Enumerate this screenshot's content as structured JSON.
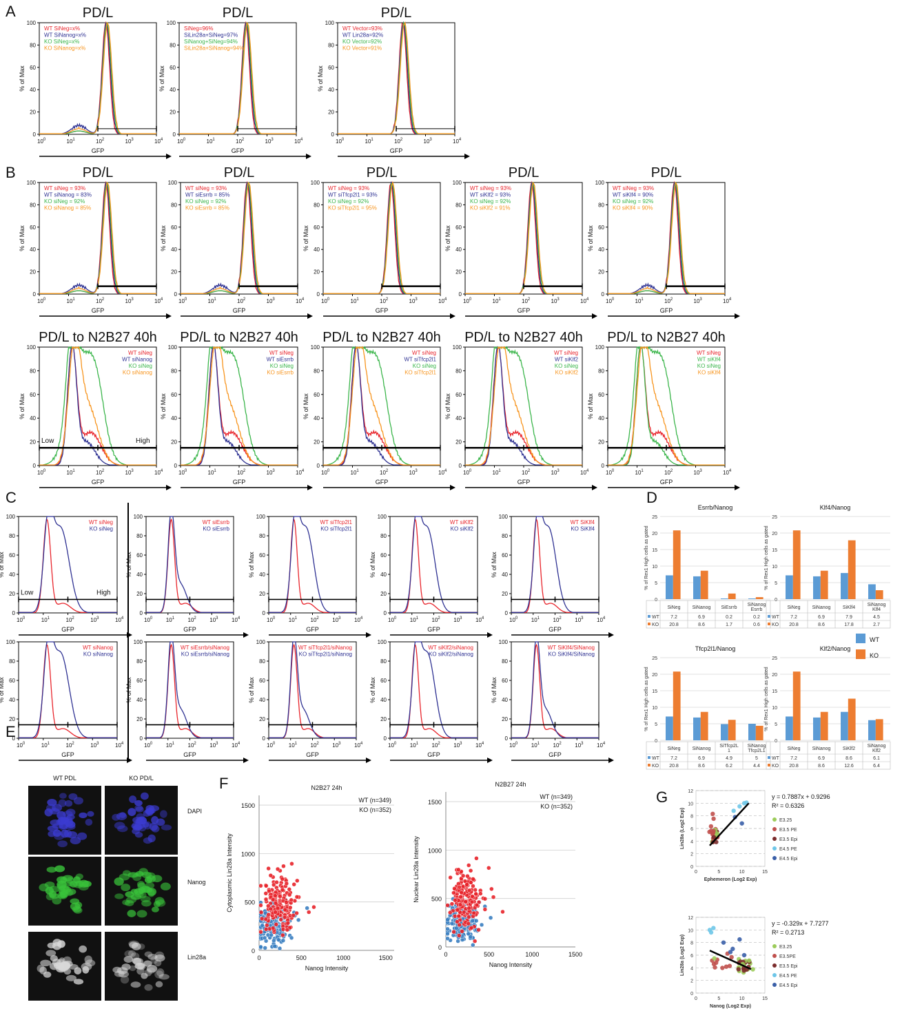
{
  "figure": {
    "panel_letters": [
      "A",
      "B",
      "C",
      "D",
      "E",
      "F",
      "G"
    ],
    "gfp_label": "GFP",
    "pct_max_label": "% of Max",
    "low_label": "Low",
    "high_label": "High",
    "y_ticks": [
      "0",
      "20",
      "40",
      "60",
      "80",
      "100"
    ]
  },
  "colors": {
    "red": "#e8232a",
    "blue": "#2e3192",
    "green": "#3ab54a",
    "orange": "#f7941d",
    "wt_bar": "#5b9bd5",
    "ko_bar": "#ed7d31",
    "wt_dot": "#e8232a",
    "ko_dot": "#3a7fc1"
  },
  "chart_data": [
    {
      "id": "A1",
      "type": "line",
      "title": "PD/L",
      "xlabel": "GFP",
      "ylabel": "% of Max",
      "x_scale": "log",
      "xlim": [
        1,
        10000
      ],
      "ylim": [
        0,
        100
      ],
      "legend": [
        "WT SiNeg=x%",
        "WT SiNanog=x%",
        "KO SiNeg=x%",
        "KO SiNanog=x%"
      ],
      "legend_colors": [
        "red",
        "blue",
        "green",
        "orange"
      ],
      "peak": 200,
      "shoulder": true
    },
    {
      "id": "A2",
      "type": "line",
      "title": "PD/L",
      "xlabel": "GFP",
      "ylabel": "% of Max",
      "x_scale": "log",
      "xlim": [
        1,
        10000
      ],
      "ylim": [
        0,
        100
      ],
      "legend": [
        "SiNeg=96%",
        "SiLin28a+SiNeg=97%",
        "SiNanog+SiNeg=94%",
        "SiLin28a+SiNanog=94%"
      ],
      "legend_colors": [
        "red",
        "blue",
        "green",
        "orange"
      ],
      "peak": 200,
      "shoulder": false
    },
    {
      "id": "A3",
      "type": "line",
      "title": "PD/L",
      "xlabel": "GFP",
      "ylabel": "% of Max",
      "x_scale": "log",
      "xlim": [
        1,
        10000
      ],
      "ylim": [
        0,
        100
      ],
      "legend": [
        "WT Vector=93%",
        "WT Lin28a=92%",
        "KO Vector=92%",
        "KO Vector=91%"
      ],
      "legend_colors": [
        "red",
        "blue",
        "green",
        "orange"
      ],
      "peak": 180,
      "shoulder": false
    },
    {
      "id": "B1",
      "type": "line",
      "title": "PD/L",
      "xlabel": "GFP",
      "ylabel": "% of Max",
      "x_scale": "log",
      "xlim": [
        1,
        10000
      ],
      "ylim": [
        0,
        100
      ],
      "legend": [
        "WT siNeg = 93%",
        "WT siNanog = 83%",
        "KO siNeg = 92%",
        "KO siNanog = 85%"
      ],
      "legend_colors": [
        "red",
        "blue",
        "green",
        "orange"
      ],
      "peak": 200,
      "shoulder": true
    },
    {
      "id": "B2",
      "type": "line",
      "title": "PD/L",
      "xlabel": "GFP",
      "ylabel": "% of Max",
      "x_scale": "log",
      "xlim": [
        1,
        10000
      ],
      "ylim": [
        0,
        100
      ],
      "legend": [
        "WT siNeg = 93%",
        "WT siEsrrb = 85%",
        "KO siNeg = 92%",
        "KO siEsrrb = 85%"
      ],
      "legend_colors": [
        "red",
        "blue",
        "green",
        "orange"
      ],
      "peak": 200,
      "shoulder": true
    },
    {
      "id": "B3",
      "type": "line",
      "title": "PD/L",
      "xlabel": "GFP",
      "ylabel": "% of Max",
      "x_scale": "log",
      "xlim": [
        1,
        10000
      ],
      "ylim": [
        0,
        100
      ],
      "legend": [
        "WT siNeg = 93%",
        "WT siTfcp2l1 = 93%",
        "KO siNeg = 92%",
        "KO siTfcp2l1 = 95%"
      ],
      "legend_colors": [
        "red",
        "blue",
        "green",
        "orange"
      ],
      "peak": 220,
      "shoulder": false
    },
    {
      "id": "B4",
      "type": "line",
      "title": "PD/L",
      "xlabel": "GFP",
      "ylabel": "% of Max",
      "x_scale": "log",
      "xlim": [
        1,
        10000
      ],
      "ylim": [
        0,
        100
      ],
      "legend": [
        "WT siNeg = 93%",
        "WT siKlf2 = 93%",
        "KO siNeg = 92%",
        "KO siKlf2 = 91%"
      ],
      "legend_colors": [
        "red",
        "blue",
        "green",
        "orange"
      ],
      "peak": 200,
      "shoulder": false
    },
    {
      "id": "B5",
      "type": "line",
      "title": "PD/L",
      "xlabel": "GFP",
      "ylabel": "% of Max",
      "x_scale": "log",
      "xlim": [
        1,
        10000
      ],
      "ylim": [
        0,
        100
      ],
      "legend": [
        "WT siNeg = 93%",
        "WT siKlf4 = 90%",
        "KO siNeg = 92%",
        "KO siKlf4 = 90%"
      ],
      "legend_colors": [
        "red",
        "blue",
        "green",
        "orange"
      ],
      "peak": 200,
      "shoulder": true
    },
    {
      "id": "B6",
      "type": "line",
      "title": "PD/L to N2B27 40h",
      "xlabel": "GFP",
      "ylabel": "% of Max",
      "x_scale": "log",
      "xlim": [
        1,
        10000
      ],
      "ylim": [
        0,
        100
      ],
      "legend": [
        "WT siNeg",
        "WT siNanog",
        "KO siNeg",
        "KO siNanog"
      ],
      "legend_colors": [
        "red",
        "blue",
        "green",
        "orange"
      ],
      "lowhigh": true
    },
    {
      "id": "B7",
      "type": "line",
      "title": "PD/L to N2B27 40h",
      "xlabel": "GFP",
      "ylabel": "% of Max",
      "x_scale": "log",
      "xlim": [
        1,
        10000
      ],
      "ylim": [
        0,
        100
      ],
      "legend": [
        "WT siNeg",
        "WT siEsrrb",
        "KO siNeg",
        "KO siEsrrb"
      ],
      "legend_colors": [
        "red",
        "blue",
        "green",
        "orange"
      ],
      "lowhigh": false
    },
    {
      "id": "B8",
      "type": "line",
      "title": "PD/L to N2B27 40h",
      "xlabel": "GFP",
      "ylabel": "% of Max",
      "x_scale": "log",
      "xlim": [
        1,
        10000
      ],
      "ylim": [
        0,
        100
      ],
      "legend": [
        "WT siNeg",
        "WT siTfcp2l1",
        "KO siNeg",
        "KO siTfcp2l1"
      ],
      "legend_colors": [
        "red",
        "blue",
        "green",
        "orange"
      ],
      "lowhigh": false
    },
    {
      "id": "B9",
      "type": "line",
      "title": "PD/L to N2B27 40h",
      "xlabel": "GFP",
      "ylabel": "% of Max",
      "x_scale": "log",
      "xlim": [
        1,
        10000
      ],
      "ylim": [
        0,
        100
      ],
      "legend": [
        "WT siNeg",
        "WT siKlf2",
        "KO siNeg",
        "KO siKlf2"
      ],
      "legend_colors": [
        "red",
        "blue",
        "green",
        "orange"
      ],
      "lowhigh": false
    },
    {
      "id": "B10",
      "type": "line",
      "title": "PD/L to N2B27 40h",
      "xlabel": "GFP",
      "ylabel": "% of Max",
      "x_scale": "log",
      "xlim": [
        1,
        10000
      ],
      "ylim": [
        0,
        100
      ],
      "legend": [
        "WT siNeg",
        "WT siKlf4",
        "KO siNeg",
        "KO siKlf4"
      ],
      "legend_colors": [
        "red",
        "green",
        "green",
        "orange"
      ],
      "lowhigh": false
    },
    {
      "id": "C1",
      "type": "line",
      "xlabel": "GFP",
      "ylabel": "% of Max",
      "x_scale": "log",
      "xlim": [
        1,
        10000
      ],
      "ylim": [
        0,
        100
      ],
      "legend": [
        "WT siNeg",
        "KO siNeg"
      ],
      "legend_colors": [
        "red",
        "blue"
      ],
      "lowhigh": true,
      "ko_wide": true
    },
    {
      "id": "C2",
      "type": "line",
      "xlabel": "GFP",
      "ylabel": "% of Max",
      "x_scale": "log",
      "xlim": [
        1,
        10000
      ],
      "ylim": [
        0,
        100
      ],
      "legend": [
        "WT siEsrrb",
        "KO siEsrrb"
      ],
      "legend_colors": [
        "red",
        "blue"
      ],
      "ko_wide": false
    },
    {
      "id": "C3",
      "type": "line",
      "xlabel": "GFP",
      "ylabel": "% of Max",
      "x_scale": "log",
      "xlim": [
        1,
        10000
      ],
      "ylim": [
        0,
        100
      ],
      "legend": [
        "WT siTfcp2l1",
        "KO siTfcp2l1"
      ],
      "legend_colors": [
        "red",
        "blue"
      ],
      "ko_wide": true
    },
    {
      "id": "C4",
      "type": "line",
      "xlabel": "GFP",
      "ylabel": "% of Max",
      "x_scale": "log",
      "xlim": [
        1,
        10000
      ],
      "ylim": [
        0,
        100
      ],
      "legend": [
        "WT siKlf2",
        "KO siKlf2"
      ],
      "legend_colors": [
        "red",
        "blue"
      ],
      "ko_wide": true
    },
    {
      "id": "C5",
      "type": "line",
      "xlabel": "GFP",
      "ylabel": "% of Max",
      "x_scale": "log",
      "xlim": [
        1,
        10000
      ],
      "ylim": [
        0,
        100
      ],
      "legend": [
        "WT SiKlf4",
        "KO SiKlf4"
      ],
      "legend_colors": [
        "red",
        "blue"
      ],
      "ko_wide": true
    },
    {
      "id": "C6",
      "type": "line",
      "xlabel": "GFP",
      "ylabel": "% of Max",
      "x_scale": "log",
      "xlim": [
        1,
        10000
      ],
      "ylim": [
        0,
        100
      ],
      "legend": [
        "WT siNanog",
        "KO siNanog"
      ],
      "legend_colors": [
        "red",
        "blue"
      ],
      "ko_wide": true
    },
    {
      "id": "C7",
      "type": "line",
      "xlabel": "GFP",
      "ylabel": "% of Max",
      "x_scale": "log",
      "xlim": [
        1,
        10000
      ],
      "ylim": [
        0,
        100
      ],
      "legend": [
        "WT siEsrrb/siNanog",
        "KO siEsrrb/siNanog"
      ],
      "legend_colors": [
        "red",
        "blue"
      ],
      "ko_wide": false
    },
    {
      "id": "C8",
      "type": "line",
      "xlabel": "GFP",
      "ylabel": "% of Max",
      "x_scale": "log",
      "xlim": [
        1,
        10000
      ],
      "ylim": [
        0,
        100
      ],
      "legend": [
        "WT siTfcp2l1/siNanog",
        "KO siTfcp2l1/siNanog"
      ],
      "legend_colors": [
        "red",
        "blue"
      ],
      "ko_wide": false
    },
    {
      "id": "C9",
      "type": "line",
      "xlabel": "GFP",
      "ylabel": "% of Max",
      "x_scale": "log",
      "xlim": [
        1,
        10000
      ],
      "ylim": [
        0,
        100
      ],
      "legend": [
        "WT siKlf2/siNanog",
        "KO siKlf2/siNanog"
      ],
      "legend_colors": [
        "red",
        "blue"
      ],
      "ko_wide": true
    },
    {
      "id": "C10",
      "type": "line",
      "xlabel": "GFP",
      "ylabel": "% of Max",
      "x_scale": "log",
      "xlim": [
        1,
        10000
      ],
      "ylim": [
        0,
        100
      ],
      "legend": [
        "WT SiKlf4/SiNanog",
        "KO SiKlf4/SiNanog"
      ],
      "legend_colors": [
        "red",
        "blue"
      ],
      "ko_wide": false
    },
    {
      "id": "D1",
      "type": "bar",
      "title": "Esrrb/Nanog",
      "ylabel": "% of Rex1 High cells as gated",
      "ylim": [
        0,
        25
      ],
      "yticks": [
        0,
        5,
        10,
        15,
        20,
        25
      ],
      "categories": [
        "SiNeg",
        "SiNanog",
        "SiEsrrb",
        "SiNanog Esrrb"
      ],
      "series": [
        {
          "name": "WT",
          "values": [
            7.2,
            6.9,
            0.2,
            0.2
          ]
        },
        {
          "name": "KO",
          "values": [
            20.8,
            8.6,
            1.7,
            0.6
          ]
        }
      ]
    },
    {
      "id": "D2",
      "type": "bar",
      "title": "Klf4/Nanog",
      "ylabel": "% of Rex1 High cells as gated",
      "ylim": [
        0,
        25
      ],
      "yticks": [
        0,
        5,
        10,
        15,
        20,
        25
      ],
      "categories": [
        "SiNeg",
        "SiNanog",
        "SiKlf4",
        "SiNanog Klf4"
      ],
      "series": [
        {
          "name": "WT",
          "values": [
            7.2,
            6.9,
            7.9,
            4.5
          ]
        },
        {
          "name": "KO",
          "values": [
            20.8,
            8.6,
            17.8,
            2.7
          ]
        }
      ]
    },
    {
      "id": "D3",
      "type": "bar",
      "title": "Tfcp2l1/Nanog",
      "ylabel": "% of Rex1 High cells as gated",
      "ylim": [
        0,
        25
      ],
      "yticks": [
        0,
        5,
        10,
        15,
        20,
        25
      ],
      "categories": [
        "SiNeg",
        "SiNanog",
        "SiTfcp2L 1",
        "SiNanog Tfcp2L1"
      ],
      "series": [
        {
          "name": "WT",
          "values": [
            7.2,
            6.9,
            4.9,
            5
          ]
        },
        {
          "name": "KO",
          "values": [
            20.8,
            8.6,
            6.2,
            4.4
          ]
        }
      ]
    },
    {
      "id": "D4",
      "type": "bar",
      "title": "Klf2/Nanog",
      "ylabel": "% of Rex1 High cells as gated",
      "ylim": [
        0,
        25
      ],
      "yticks": [
        0,
        5,
        10,
        15,
        20,
        25
      ],
      "categories": [
        "SiNeg",
        "SiNanog",
        "SiKlf2",
        "SiNanog Klf2"
      ],
      "series": [
        {
          "name": "WT",
          "values": [
            7.2,
            6.9,
            8.6,
            6.1
          ]
        },
        {
          "name": "KO",
          "values": [
            20.8,
            8.6,
            12.6,
            6.4
          ]
        }
      ]
    },
    {
      "id": "F1",
      "type": "scatter",
      "title": "N2B27 24h",
      "xlabel": "Nanog Intensity",
      "ylabel": "Cytoplasmic Lin28a Intensity",
      "xlim": [
        0,
        1600
      ],
      "ylim": [
        0,
        1600
      ],
      "xticks": [
        0,
        500,
        1000,
        1500
      ],
      "yticks": [
        0,
        500,
        1000,
        1500
      ],
      "series": [
        {
          "name": "WT (n=349)",
          "n": 349
        },
        {
          "name": "KO (n=352)",
          "n": 352
        }
      ]
    },
    {
      "id": "F2",
      "type": "scatter",
      "title": "N2B27 24h",
      "xlabel": "Nanog Intensity",
      "ylabel": "Nuclear Lin28a Intensity",
      "xlim": [
        0,
        1500
      ],
      "ylim": [
        0,
        1600
      ],
      "xticks": [
        0,
        500,
        1000,
        1500
      ],
      "yticks": [
        0,
        500,
        1000,
        1500
      ],
      "series": [
        {
          "name": "WT (n=349)",
          "n": 349
        },
        {
          "name": "KO (n=352)",
          "n": 352
        }
      ]
    },
    {
      "id": "G1",
      "type": "scatter",
      "xlabel": "Ephemeron (Log2 Exp)",
      "ylabel": "Lin28a (Log2 Exp)",
      "xlim": [
        0,
        15
      ],
      "ylim": [
        0,
        12
      ],
      "xticks": [
        0,
        5,
        10,
        15
      ],
      "yticks": [
        0,
        2,
        4,
        6,
        8,
        10,
        12
      ],
      "equation": "y = 0.7887x + 0.9296",
      "r2": "R² = 0.6326",
      "slope": 0.7887,
      "intercept": 0.9296,
      "legend": [
        "E3.25",
        "E3.5 PE",
        "E3.5 Epi",
        "E4.5 PE",
        "E4.5 Epi"
      ]
    },
    {
      "id": "G2",
      "type": "scatter",
      "xlabel": "Nanog (Log2 Exp)",
      "ylabel": "Lin28a (Log2 Exp)",
      "xlim": [
        0,
        15
      ],
      "ylim": [
        0,
        12
      ],
      "xticks": [
        0,
        5,
        10,
        15
      ],
      "yticks": [
        0,
        2,
        4,
        6,
        8,
        10,
        12
      ],
      "equation": "y = -0.329x + 7.7277",
      "r2": "R² = 0.2713",
      "slope": -0.329,
      "intercept": 7.7277,
      "legend": [
        "E3.25",
        "E3.5PE",
        "E3.5 Epi",
        "E4.5 PE",
        "E4.5 Epi"
      ]
    }
  ],
  "panel_e": {
    "col_labels": [
      "WT PDL",
      "KO PD/L"
    ],
    "row_labels": [
      "DAPI",
      "Nanog",
      "Lin28a"
    ]
  },
  "legend_wt_ko": [
    "WT",
    "KO"
  ],
  "g_legend_colors": [
    "#9ccc5a",
    "#c0504d",
    "#7b2c2c",
    "#6ec6e8",
    "#3a5fa8"
  ]
}
